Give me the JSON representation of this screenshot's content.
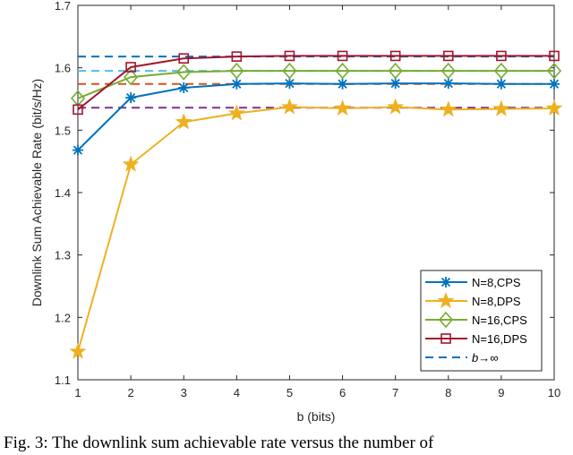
{
  "chart_data": {
    "type": "line",
    "title": "",
    "xlabel": "b (bits)",
    "ylabel": "Downlink Sum Achievable Rate (bit/s/Hz)",
    "xlim": [
      1,
      10
    ],
    "ylim": [
      1.1,
      1.7
    ],
    "xticks": [
      "1",
      "2",
      "3",
      "4",
      "5",
      "6",
      "7",
      "8",
      "9",
      "10"
    ],
    "yticks": [
      "1.1",
      "1.2",
      "1.3",
      "1.4",
      "1.5",
      "1.6",
      "1.7"
    ],
    "grid": false,
    "legend_position": "bottom-right",
    "x": [
      1,
      2,
      3,
      4,
      5,
      6,
      7,
      8,
      9,
      10
    ],
    "series": [
      {
        "name": "N=8,CPS",
        "color": "#0072BD",
        "marker": "asterisk",
        "values": [
          1.468,
          1.552,
          1.568,
          1.574,
          1.575,
          1.574,
          1.575,
          1.575,
          1.574,
          1.574
        ]
      },
      {
        "name": "N=8,DPS",
        "color": "#EDB120",
        "marker": "star",
        "values": [
          1.145,
          1.445,
          1.513,
          1.527,
          1.537,
          1.535,
          1.537,
          1.533,
          1.534,
          1.535
        ]
      },
      {
        "name": "N=16,CPS",
        "color": "#77AC30",
        "marker": "diamond",
        "values": [
          1.551,
          1.585,
          1.593,
          1.595,
          1.595,
          1.595,
          1.595,
          1.595,
          1.595,
          1.595
        ]
      },
      {
        "name": "N=16,DPS",
        "color": "#A2142F",
        "marker": "square",
        "values": [
          1.533,
          1.601,
          1.615,
          1.618,
          1.619,
          1.619,
          1.619,
          1.619,
          1.619,
          1.619
        ]
      }
    ],
    "reference_lines": [
      {
        "name": "b→∞",
        "color": "#0072BD",
        "value": 1.618,
        "in_legend": true
      },
      {
        "name": "",
        "color": "#4DBEEE",
        "value": 1.595,
        "in_legend": false
      },
      {
        "name": "",
        "color": "#D95319",
        "value": 1.574,
        "in_legend": false
      },
      {
        "name": "",
        "color": "#7E2F8E",
        "value": 1.536,
        "in_legend": false
      }
    ]
  },
  "caption": "Fig. 3: The downlink sum achievable rate versus the number of"
}
